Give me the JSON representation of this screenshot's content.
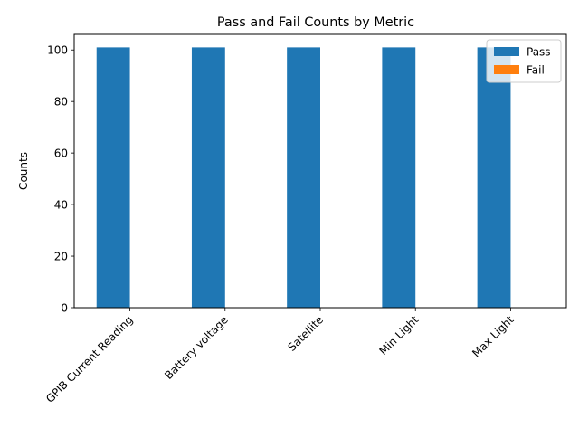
{
  "chart_data": {
    "type": "bar",
    "title": "Pass and Fail Counts by Metric",
    "xlabel": "",
    "ylabel": "Counts",
    "categories": [
      "GPIB Current Reading",
      "Battery voltage",
      "Satellite",
      "Min Light",
      "Max Light"
    ],
    "series": [
      {
        "name": "Pass",
        "values": [
          101,
          101,
          101,
          101,
          101
        ],
        "color": "#1f77b4"
      },
      {
        "name": "Fail",
        "values": [
          0,
          0,
          0,
          0,
          0
        ],
        "color": "#ff7f0e"
      }
    ],
    "ylim": [
      0,
      106.05
    ],
    "yticks": [
      0,
      20,
      40,
      60,
      80,
      100
    ],
    "ytick_labels": [
      "0",
      "20",
      "40",
      "60",
      "80",
      "100"
    ],
    "grid": false,
    "legend_position": "top-right"
  }
}
